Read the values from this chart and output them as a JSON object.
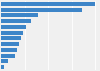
{
  "values": [
    3600,
    3100,
    1400,
    1150,
    950,
    850,
    780,
    700,
    620,
    520,
    250,
    130
  ],
  "bar_color": "#3d85c8",
  "background_color": "#f0f0f0",
  "grid_color": "#ffffff",
  "figsize": [
    1.0,
    0.71
  ],
  "dpi": 100,
  "bar_height": 0.72
}
